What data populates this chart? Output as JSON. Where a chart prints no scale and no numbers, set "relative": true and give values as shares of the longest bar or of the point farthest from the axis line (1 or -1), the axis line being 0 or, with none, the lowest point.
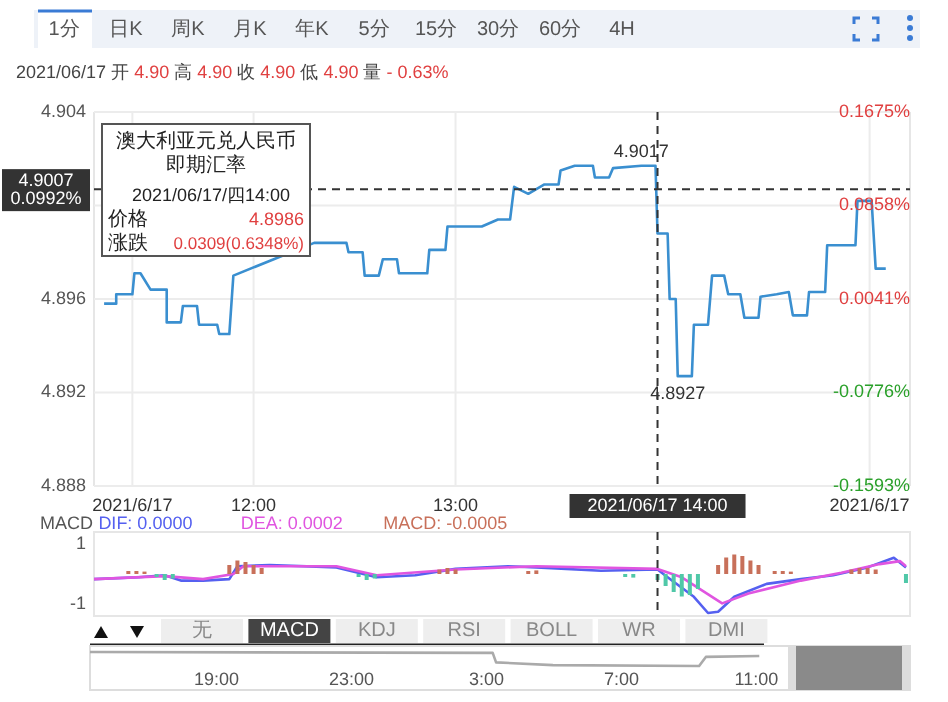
{
  "chart_data": [
    {
      "type": "other",
      "annotations": [
        "1分",
        "日K",
        "周K",
        "月K",
        "年K",
        "5分",
        "15分",
        "30分",
        "60分",
        "4H"
      ]
    },
    {
      "type": "line",
      "title": "澳大利亚元兑人民币即期汇率",
      "x": [
        11.26,
        11.32,
        11.32,
        11.4,
        11.41,
        11.44,
        11.49,
        11.57,
        11.57,
        11.64,
        11.65,
        11.72,
        11.73,
        11.82,
        11.83,
        11.88,
        11.9,
        12.3,
        12.46,
        12.47,
        12.54,
        12.55,
        12.62,
        12.64,
        12.71,
        12.72,
        12.86,
        12.87,
        12.95,
        12.96,
        13.13,
        13.21,
        13.27,
        13.29,
        13.36,
        13.44,
        13.51,
        13.52,
        13.59,
        13.68,
        13.69,
        13.76,
        13.78,
        13.92,
        13.99,
        14.0,
        14.05,
        14.06,
        14.09,
        14.1,
        14.17,
        14.18,
        14.25,
        14.27,
        14.33,
        14.35,
        14.41,
        14.43,
        14.5,
        14.51,
        14.59,
        14.65,
        14.67,
        14.74,
        14.75,
        14.83,
        14.84,
        14.98,
        14.99,
        15.06,
        15.08,
        15.13
      ],
      "series": [
        {
          "color": "#3a8fd0",
          "values": [
            4.8958,
            4.8958,
            4.8962,
            4.8962,
            4.8971,
            4.8971,
            4.8964,
            4.8964,
            4.895,
            4.895,
            4.8957,
            4.8957,
            4.8949,
            4.8949,
            4.8945,
            4.8945,
            4.897,
            4.8984,
            4.8984,
            4.898,
            4.898,
            4.897,
            4.897,
            4.8977,
            4.8977,
            4.8971,
            4.8971,
            4.8981,
            4.8981,
            4.8991,
            4.8991,
            4.8994,
            4.8994,
            4.9008,
            4.9005,
            4.9009,
            4.9009,
            4.9015,
            4.9017,
            4.9017,
            4.9012,
            4.9012,
            4.9016,
            4.9017,
            4.9017,
            4.8988,
            4.8988,
            4.896,
            4.896,
            4.8927,
            4.8927,
            4.8949,
            4.8949,
            4.897,
            4.897,
            4.8962,
            4.8962,
            4.8952,
            4.8952,
            4.8961,
            4.8962,
            4.8963,
            4.8953,
            4.8953,
            4.8963,
            4.8963,
            4.8983,
            4.8983,
            4.9002,
            4.9002,
            4.8973,
            4.8973
          ]
        }
      ],
      "xlim": [
        11.21,
        15.25
      ],
      "xticks": [
        {
          "value": 11.4,
          "label": "2021/6/17"
        },
        {
          "value": 12,
          "label": "12:00"
        },
        {
          "value": 13,
          "label": "13:00"
        },
        {
          "value": 15.05,
          "label": "2021/6/17"
        }
      ],
      "ylim": [
        4.888,
        4.904
      ],
      "yticks": [
        4.888,
        4.892,
        4.896,
        {
          "value": 4.9,
          "label": null
        },
        4.904
      ],
      "y2lim": [
        -0.1593,
        0.1675
      ],
      "y2ticks": [
        {
          "value": -0.1593,
          "label": "-0.1593%"
        },
        {
          "value": -0.0776,
          "label": "-0.0776%"
        },
        {
          "value": 0.0041,
          "label": "0.0041%"
        },
        {
          "value": 0.0858,
          "label": "0.0858%"
        },
        {
          "value": 0.1675,
          "label": "0.1675%"
        }
      ],
      "grid": true,
      "ref_lines": [
        {
          "axis": "y",
          "value": 4.9007,
          "label": "4.9007",
          "line_style": "dashed"
        },
        {
          "axis": "x",
          "value": 14,
          "label": "2021/06/17 14:00",
          "line_style": "dashed"
        }
      ],
      "annotations": [
        "2021/06/17 开 4.90 高 4.90 收 4.90 低 4.90 量 - 0.63%",
        "2021/06/17/四14:00",
        "价格",
        "4.8986",
        "涨跌",
        "0.0309(0.6348%)",
        {
          "text": "4.9017",
          "x": 13.92,
          "y": 4.9017
        },
        {
          "text": "4.8927",
          "x": 14.1,
          "y": 4.8927
        },
        "0.0992%"
      ]
    },
    {
      "type": "line",
      "title": "MACD",
      "legend": "top left",
      "tick_labels": "y",
      "xlim": [
        11.21,
        15.25
      ],
      "ylim": [
        -1.4,
        1.4
      ],
      "yticks": [
        -1,
        1
      ],
      "ref_lines": [
        {
          "axis": "x",
          "value": 14,
          "line_style": "dashed"
        }
      ],
      "series": [
        {
          "name": "DIF: 0.0000",
          "color": "#5560f0",
          "x": [
            11.21,
            11.43,
            11.56,
            11.64,
            11.75,
            11.88,
            11.92,
            12.08,
            12.41,
            12.61,
            12.8,
            13.0,
            13.26,
            13.4,
            13.72,
            14.0,
            14.05,
            14.18,
            14.25,
            14.3,
            14.38,
            14.54,
            14.71,
            14.87,
            15.04,
            15.17,
            15.23
          ],
          "values": [
            -0.17,
            -0.11,
            -0.04,
            -0.22,
            -0.22,
            -0.17,
            0.26,
            0.3,
            0.22,
            -0.11,
            -0.04,
            0.17,
            0.26,
            0.22,
            0.11,
            0.15,
            -0.11,
            -0.76,
            -1.3,
            -1.26,
            -0.76,
            -0.33,
            -0.17,
            -0.04,
            0.22,
            0.54,
            0.22
          ]
        },
        {
          "name": "DEA: 0.0002",
          "color": "#e055e0",
          "x": [
            11.21,
            11.56,
            11.75,
            11.9,
            11.95,
            12.41,
            12.61,
            13.0,
            13.4,
            14.0,
            14.12,
            14.32,
            14.45,
            14.71,
            14.91,
            15.1,
            15.2,
            15.23
          ],
          "values": [
            -0.17,
            -0.07,
            -0.17,
            0.0,
            0.26,
            0.26,
            -0.04,
            0.15,
            0.26,
            0.17,
            -0.11,
            -0.98,
            -0.65,
            -0.22,
            0.04,
            0.33,
            0.43,
            0.26
          ]
        },
        {
          "name": "MACD: -0.0005",
          "type": "bar",
          "color": "#c8705a",
          "x": [
            11.38,
            11.42,
            11.46,
            11.52,
            11.56,
            11.6,
            11.88,
            11.92,
            11.96,
            12.0,
            12.04,
            12.52,
            12.56,
            12.6,
            12.92,
            12.96,
            13.0,
            13.36,
            13.4,
            13.84,
            13.88,
            14.0,
            14.04,
            14.08,
            14.12,
            14.16,
            14.2,
            14.3,
            14.34,
            14.38,
            14.42,
            14.46,
            14.5,
            14.58,
            14.62,
            14.66,
            14.96,
            15.0,
            15.04,
            15.08,
            15.23
          ],
          "values": [
            0.1,
            0.1,
            0.08,
            -0.1,
            -0.2,
            -0.15,
            0.3,
            0.45,
            0.4,
            0.3,
            0.2,
            -0.1,
            -0.2,
            -0.15,
            0.15,
            0.2,
            0.15,
            0.1,
            0.12,
            -0.1,
            -0.12,
            -0.2,
            -0.4,
            -0.6,
            -0.75,
            -0.7,
            -0.5,
            0.3,
            0.55,
            0.65,
            0.6,
            0.45,
            0.3,
            0.1,
            0.1,
            0.08,
            0.15,
            0.2,
            0.2,
            0.15,
            -0.3
          ],
          "colors": [
            "#c8705a",
            "#c8705a",
            "#c8705a",
            "#50c8a8",
            "#50c8a8",
            "#50c8a8",
            "#c8705a",
            "#c8705a",
            "#c8705a",
            "#c8705a",
            "#c8705a",
            "#50c8a8",
            "#50c8a8",
            "#50c8a8",
            "#c8705a",
            "#c8705a",
            "#c8705a",
            "#c8705a",
            "#c8705a",
            "#50c8a8",
            "#50c8a8",
            "#50c8a8",
            "#50c8a8",
            "#50c8a8",
            "#50c8a8",
            "#50c8a8",
            "#50c8a8",
            "#c8705a",
            "#c8705a",
            "#c8705a",
            "#c8705a",
            "#c8705a",
            "#c8705a",
            "#c8705a",
            "#c8705a",
            "#c8705a",
            "#c8705a",
            "#c8705a",
            "#c8705a",
            "#c8705a",
            "#50c8a8"
          ]
        }
      ]
    },
    {
      "type": "other",
      "annotations": [
        "无",
        "MACD",
        "KDJ",
        "RSI",
        "BOLL",
        "WR",
        "DMI"
      ]
    },
    {
      "type": "line",
      "relative": true,
      "tick_labels": "x",
      "xlim": [
        "2021-06-16T15:15",
        "2021-06-17T15:33"
      ],
      "xticks": [
        {
          "value": "2021-06-16T19:00",
          "label": "19:00"
        },
        {
          "value": "2021-06-16T23:00",
          "label": "23:00"
        },
        {
          "value": "2021-06-17T03:00",
          "label": "3:00"
        },
        {
          "value": "2021-06-17T07:00",
          "label": "7:00"
        },
        {
          "value": "2021-06-17T11:00",
          "label": "11:00"
        }
      ],
      "x": [
        "2021-06-16T15:15",
        "2021-06-17T03:11",
        "2021-06-17T03:17",
        "2021-06-17T04:58",
        "2021-06-17T09:18",
        "2021-06-17T09:30",
        "2021-06-17T11:05"
      ],
      "series": [
        {
          "color": "#aaaaaa",
          "values": [
            1.0,
            0.94,
            0.26,
            0.06,
            0.0,
            0.65,
            0.71
          ]
        }
      ]
    }
  ]
}
